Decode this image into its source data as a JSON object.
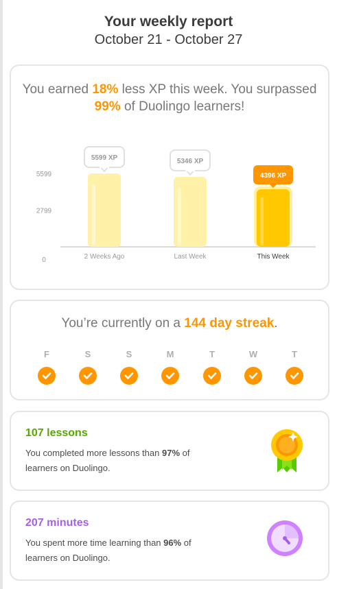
{
  "header": {
    "title": "Your weekly report",
    "date_range": "October 21 - October 27"
  },
  "xp_card": {
    "summary_prefix": "You earned ",
    "xp_change": "18%",
    "summary_mid": " less XP this week. You surpassed ",
    "percentile": "99%",
    "summary_suffix": " of Duolingo learners!"
  },
  "chart_data": {
    "type": "bar",
    "categories": [
      "2 Weeks Ago",
      "Last Week",
      "This Week"
    ],
    "values": [
      5599,
      5346,
      4396
    ],
    "value_labels": [
      "5599 XP",
      "5346 XP",
      "4396 XP"
    ],
    "y_ticks": [
      0,
      2799,
      5599
    ],
    "y_tick_labels": [
      "0",
      "2799",
      "5599"
    ],
    "ylim": [
      0,
      6300
    ],
    "colors": {
      "past_bar": "#fff2a8",
      "past_bar_highlight": "#fff8cc",
      "current_bar": "#ffc800",
      "current_bar_outline": "#fff0a0",
      "current_badge": "#ff9600",
      "past_label_text": "#999999",
      "current_label_text": "#3c3c3c"
    },
    "highlight_index": 2
  },
  "streak_card": {
    "prefix": "You’re currently on a ",
    "streak": "144 day streak",
    "suffix": ".",
    "days": [
      "F",
      "S",
      "S",
      "M",
      "T",
      "W",
      "T"
    ],
    "completed": [
      true,
      true,
      true,
      true,
      true,
      true,
      true
    ]
  },
  "lessons_card": {
    "title": "107 lessons",
    "title_color": "#58a700",
    "desc_prefix": "You completed more lessons than ",
    "percent": "97%",
    "desc_suffix": " of learners on Duolingo.",
    "icon": "medal-icon"
  },
  "minutes_card": {
    "title": "207 minutes",
    "title_color": "#a560e8",
    "desc_prefix": "You spent more time learning than ",
    "percent": "96%",
    "desc_suffix": " of learners on Duolingo.",
    "icon": "stopwatch-icon"
  }
}
